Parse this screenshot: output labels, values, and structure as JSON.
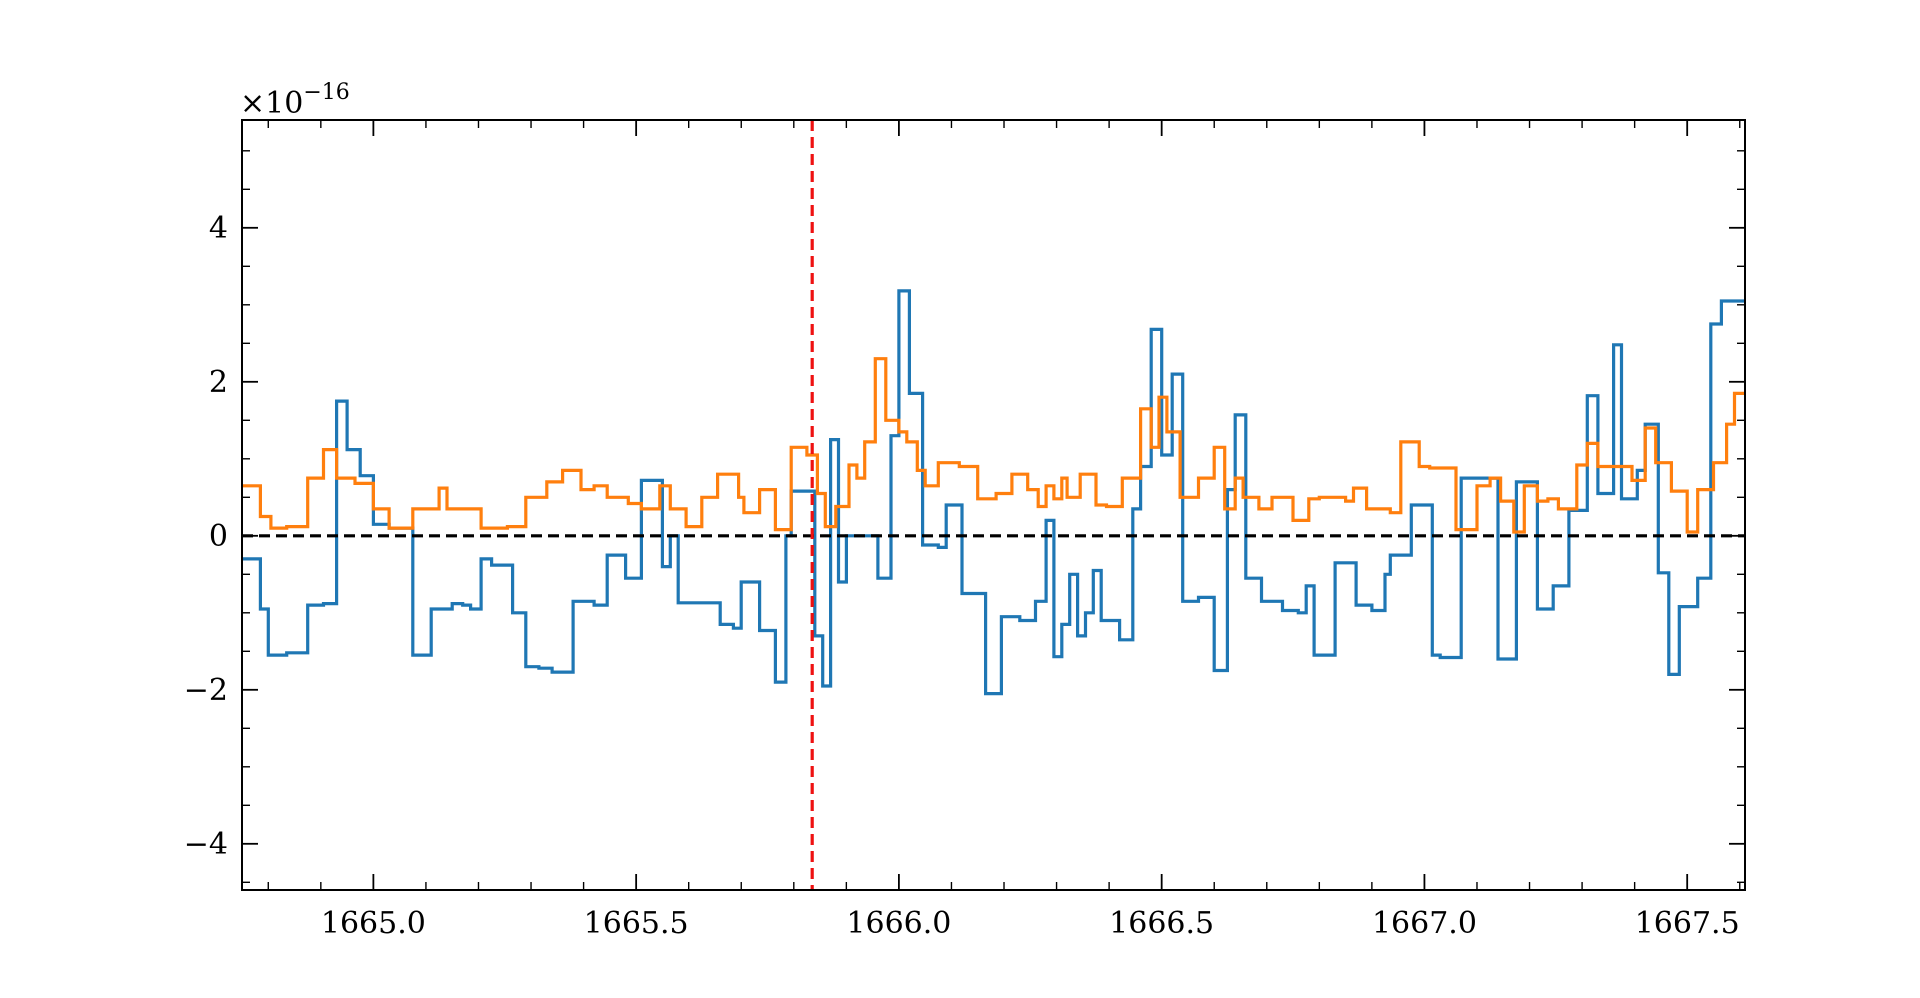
{
  "chart_data": {
    "type": "line",
    "step": true,
    "title": "",
    "xlabel": "",
    "ylabel": "",
    "y_multiplier_label": "×10",
    "y_multiplier_exponent": "−16",
    "xlim": [
      1664.75,
      1667.61
    ],
    "ylim": [
      -4.6,
      5.4
    ],
    "xticks": [
      1665.0,
      1665.5,
      1666.0,
      1666.5,
      1667.0,
      1667.5
    ],
    "xtick_labels": [
      "1665.0",
      "1665.5",
      "1666.0",
      "1666.5",
      "1667.0",
      "1667.5"
    ],
    "yticks": [
      -4,
      -2,
      0,
      2,
      4
    ],
    "ytick_labels": [
      "−4",
      "−2",
      "0",
      "2",
      "4"
    ],
    "grid": false,
    "legend": "none",
    "reference_lines": [
      {
        "orientation": "horizontal",
        "value": 0,
        "color": "#000000",
        "style": "dashed"
      },
      {
        "orientation": "vertical",
        "value": 1665.835,
        "color": "#ee1111",
        "style": "dashed"
      }
    ],
    "series": [
      {
        "color": "#1f77b4",
        "x": [
          1664.75,
          1664.785,
          1664.8,
          1664.835,
          1664.875,
          1664.905,
          1664.93,
          1664.95,
          1664.975,
          1665.0,
          1665.03,
          1665.075,
          1665.11,
          1665.15,
          1665.17,
          1665.185,
          1665.205,
          1665.225,
          1665.265,
          1665.29,
          1665.315,
          1665.34,
          1665.38,
          1665.42,
          1665.445,
          1665.48,
          1665.51,
          1665.55,
          1665.565,
          1665.58,
          1665.62,
          1665.66,
          1665.685,
          1665.7,
          1665.735,
          1665.765,
          1665.785,
          1665.795,
          1665.84,
          1665.855,
          1665.87,
          1665.885,
          1665.9,
          1665.915,
          1665.94,
          1665.96,
          1665.985,
          1666.0,
          1666.02,
          1666.045,
          1666.075,
          1666.09,
          1666.12,
          1666.165,
          1666.195,
          1666.23,
          1666.26,
          1666.28,
          1666.295,
          1666.31,
          1666.325,
          1666.34,
          1666.355,
          1666.37,
          1666.385,
          1666.42,
          1666.445,
          1666.46,
          1666.48,
          1666.5,
          1666.52,
          1666.54,
          1666.57,
          1666.6,
          1666.625,
          1666.64,
          1666.66,
          1666.69,
          1666.73,
          1666.76,
          1666.775,
          1666.79,
          1666.83,
          1666.87,
          1666.9,
          1666.925,
          1666.935,
          1666.975,
          1667.015,
          1667.03,
          1667.07,
          1667.1,
          1667.105,
          1667.14,
          1667.175,
          1667.215,
          1667.245,
          1667.275,
          1667.31,
          1667.33,
          1667.36,
          1667.375,
          1667.405,
          1667.42,
          1667.445,
          1667.465,
          1667.485,
          1667.52,
          1667.545,
          1667.565,
          1667.595
        ],
        "y": [
          -0.3,
          -0.95,
          -1.55,
          -1.52,
          -0.9,
          -0.88,
          1.75,
          1.12,
          0.78,
          0.15,
          0.1,
          -1.55,
          -0.95,
          -0.88,
          -0.9,
          -0.95,
          -0.3,
          -0.38,
          -1.0,
          -1.7,
          -1.72,
          -1.77,
          -0.85,
          -0.9,
          -0.25,
          -0.55,
          0.72,
          -0.4,
          0.0,
          -0.87,
          -0.87,
          -1.15,
          -1.2,
          -0.6,
          -1.23,
          -1.9,
          0.0,
          0.58,
          -1.3,
          -1.95,
          1.25,
          -0.6,
          0.0,
          0.0,
          0.0,
          -0.55,
          1.3,
          3.18,
          1.85,
          -0.12,
          -0.15,
          0.4,
          -0.75,
          -2.05,
          -1.05,
          -1.1,
          -0.85,
          0.2,
          -1.57,
          -1.15,
          -0.5,
          -1.3,
          -1.0,
          -0.45,
          -1.1,
          -1.35,
          0.35,
          0.9,
          2.68,
          1.05,
          2.1,
          -0.85,
          -0.8,
          -1.75,
          0.6,
          1.57,
          -0.55,
          -0.85,
          -0.97,
          -1.0,
          -0.65,
          -1.55,
          -0.35,
          -0.9,
          -0.97,
          -0.5,
          -0.25,
          0.4,
          -1.55,
          -1.58,
          0.75,
          0.75,
          0.75,
          -1.6,
          0.7,
          -0.95,
          -0.65,
          0.33,
          1.82,
          0.55,
          2.48,
          0.48,
          0.85,
          1.45,
          -0.48,
          -1.8,
          -0.92,
          -0.55,
          2.75,
          3.05,
          3.05
        ]
      },
      {
        "color": "#ff7f0e",
        "x": [
          1664.75,
          1664.785,
          1664.805,
          1664.835,
          1664.875,
          1664.905,
          1664.93,
          1664.965,
          1665.0,
          1665.03,
          1665.075,
          1665.125,
          1665.14,
          1665.175,
          1665.205,
          1665.255,
          1665.29,
          1665.33,
          1665.36,
          1665.395,
          1665.42,
          1665.445,
          1665.485,
          1665.51,
          1665.545,
          1665.565,
          1665.595,
          1665.625,
          1665.655,
          1665.695,
          1665.705,
          1665.735,
          1665.765,
          1665.795,
          1665.825,
          1665.845,
          1665.86,
          1665.88,
          1665.905,
          1665.92,
          1665.935,
          1665.955,
          1665.975,
          1666.0,
          1666.015,
          1666.035,
          1666.05,
          1666.075,
          1666.115,
          1666.15,
          1666.185,
          1666.215,
          1666.245,
          1666.265,
          1666.28,
          1666.295,
          1666.31,
          1666.32,
          1666.345,
          1666.375,
          1666.395,
          1666.425,
          1666.46,
          1666.48,
          1666.495,
          1666.51,
          1666.535,
          1666.57,
          1666.6,
          1666.62,
          1666.64,
          1666.655,
          1666.685,
          1666.71,
          1666.75,
          1666.78,
          1666.8,
          1666.85,
          1666.865,
          1666.89,
          1666.915,
          1666.935,
          1666.955,
          1666.99,
          1667.01,
          1667.06,
          1667.1,
          1667.125,
          1667.145,
          1667.17,
          1667.19,
          1667.215,
          1667.235,
          1667.255,
          1667.29,
          1667.31,
          1667.33,
          1667.37,
          1667.395,
          1667.42,
          1667.44,
          1667.47,
          1667.5,
          1667.52,
          1667.55,
          1667.575,
          1667.59
        ],
        "y": [
          0.65,
          0.25,
          0.1,
          0.12,
          0.75,
          1.12,
          0.75,
          0.68,
          0.35,
          0.1,
          0.35,
          0.62,
          0.35,
          0.35,
          0.1,
          0.12,
          0.5,
          0.7,
          0.85,
          0.6,
          0.65,
          0.5,
          0.42,
          0.35,
          0.65,
          0.35,
          0.12,
          0.5,
          0.8,
          0.5,
          0.3,
          0.6,
          0.08,
          1.15,
          1.05,
          0.55,
          0.12,
          0.38,
          0.92,
          0.75,
          1.22,
          2.3,
          1.5,
          1.35,
          1.22,
          0.85,
          0.65,
          0.95,
          0.9,
          0.48,
          0.55,
          0.8,
          0.6,
          0.38,
          0.65,
          0.48,
          0.75,
          0.5,
          0.8,
          0.4,
          0.38,
          0.75,
          1.65,
          1.15,
          1.8,
          1.35,
          0.5,
          0.75,
          1.15,
          0.35,
          0.75,
          0.5,
          0.35,
          0.5,
          0.2,
          0.48,
          0.5,
          0.45,
          0.62,
          0.35,
          0.35,
          0.3,
          1.22,
          0.9,
          0.88,
          0.08,
          0.65,
          0.75,
          0.45,
          0.05,
          0.65,
          0.45,
          0.48,
          0.35,
          0.92,
          1.2,
          0.9,
          0.9,
          0.72,
          1.4,
          0.95,
          0.58,
          0.05,
          0.6,
          0.95,
          1.45,
          1.85
        ]
      }
    ]
  }
}
